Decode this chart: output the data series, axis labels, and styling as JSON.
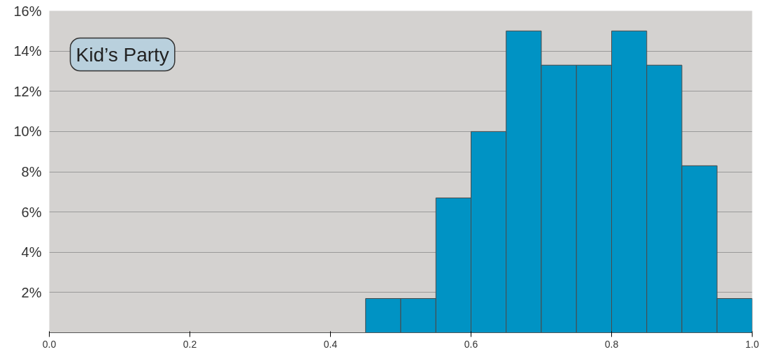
{
  "chart_data": {
    "type": "histogram",
    "annotations": [
      "Kid’s Party"
    ],
    "bins": [
      0,
      0.05,
      0.1,
      0.15,
      0.2,
      0.25,
      0.3,
      0.35,
      0.4,
      0.45,
      0.5,
      0.55,
      0.6,
      0.65,
      0.7,
      0.75,
      0.8,
      0.85,
      0.9,
      0.95,
      1.0
    ],
    "values": [
      0,
      0,
      0,
      0,
      0,
      0,
      0,
      0,
      0,
      1.7,
      1.7,
      6.7,
      10,
      15,
      13.3,
      13.3,
      15,
      13.3,
      8.3,
      1.7
    ],
    "color": "#0093c4",
    "xlim": [
      0,
      1
    ],
    "xticks": [
      {
        "value": 0,
        "label": "0.0"
      },
      0.2,
      0.4,
      0.6,
      0.8,
      {
        "value": 1,
        "label": "1.0"
      }
    ],
    "ylim": [
      0,
      16
    ],
    "yticks": [
      {
        "value": 2,
        "label": "2%"
      },
      {
        "value": 4,
        "label": "4%"
      },
      {
        "value": 6,
        "label": "6%"
      },
      {
        "value": 8,
        "label": "8%"
      },
      {
        "value": 10,
        "label": "10%"
      },
      {
        "value": 12,
        "label": "12%"
      },
      {
        "value": 14,
        "label": "14%"
      },
      {
        "value": 16,
        "label": "16%"
      }
    ],
    "grid": "y"
  }
}
